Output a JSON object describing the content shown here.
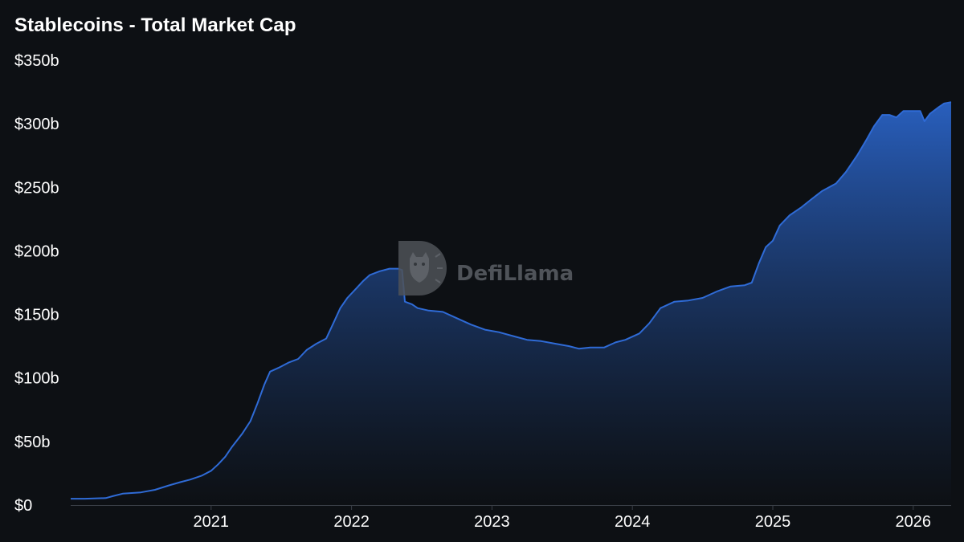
{
  "colors": {
    "background": "#0d1014",
    "line": "#2f6bd6",
    "fill_top": "#2a63c6",
    "fill_bottom": "#0d1014",
    "axis": "#3a3f47",
    "text": "#ffffff",
    "watermark": "#5b5f66"
  },
  "watermark": {
    "text": "DefiLlama",
    "icon": "llama-logo-icon"
  },
  "chart_data": {
    "type": "area",
    "title": "Stablecoins - Total Market Cap",
    "xlabel": "",
    "ylabel": "",
    "y_tick_labels": [
      "$0",
      "$50b",
      "$100b",
      "$150b",
      "$200b",
      "$250b",
      "$300b",
      "$350b"
    ],
    "y_ticks": [
      0,
      50,
      100,
      150,
      200,
      250,
      300,
      350
    ],
    "ylim": [
      0,
      350
    ],
    "x_tick_labels": [
      "2021",
      "2022",
      "2023",
      "2024",
      "2025",
      "2026"
    ],
    "x_ticks": [
      2021,
      2022,
      2023,
      2024,
      2025,
      2026
    ],
    "xlim": [
      2020.0,
      2026.27
    ],
    "grid": false,
    "legend": "none",
    "series": [
      {
        "unit": "billion USD",
        "points": [
          [
            2020.0,
            5
          ],
          [
            2020.1,
            5
          ],
          [
            2020.25,
            5.5
          ],
          [
            2020.3,
            7
          ],
          [
            2020.37,
            9
          ],
          [
            2020.5,
            10
          ],
          [
            2020.6,
            12
          ],
          [
            2020.7,
            15.5
          ],
          [
            2020.78,
            18
          ],
          [
            2020.85,
            20
          ],
          [
            2020.93,
            23
          ],
          [
            2021.0,
            27
          ],
          [
            2021.05,
            32
          ],
          [
            2021.1,
            38
          ],
          [
            2021.15,
            46
          ],
          [
            2021.22,
            56
          ],
          [
            2021.28,
            66
          ],
          [
            2021.33,
            80
          ],
          [
            2021.38,
            95
          ],
          [
            2021.42,
            105
          ],
          [
            2021.48,
            108
          ],
          [
            2021.55,
            112
          ],
          [
            2021.62,
            115
          ],
          [
            2021.68,
            122
          ],
          [
            2021.75,
            127
          ],
          [
            2021.82,
            131
          ],
          [
            2021.87,
            143
          ],
          [
            2021.92,
            155
          ],
          [
            2021.97,
            163
          ],
          [
            2022.03,
            170
          ],
          [
            2022.08,
            176
          ],
          [
            2022.13,
            181
          ],
          [
            2022.2,
            184
          ],
          [
            2022.27,
            186
          ],
          [
            2022.33,
            186
          ],
          [
            2022.36,
            185
          ],
          [
            2022.38,
            160
          ],
          [
            2022.43,
            158
          ],
          [
            2022.47,
            155
          ],
          [
            2022.55,
            153
          ],
          [
            2022.65,
            152
          ],
          [
            2022.75,
            147
          ],
          [
            2022.85,
            142
          ],
          [
            2022.95,
            138
          ],
          [
            2023.05,
            136
          ],
          [
            2023.15,
            133
          ],
          [
            2023.25,
            130
          ],
          [
            2023.35,
            129
          ],
          [
            2023.45,
            127
          ],
          [
            2023.55,
            125
          ],
          [
            2023.62,
            123
          ],
          [
            2023.7,
            124
          ],
          [
            2023.8,
            124
          ],
          [
            2023.88,
            128
          ],
          [
            2023.95,
            130
          ],
          [
            2024.05,
            135
          ],
          [
            2024.12,
            143
          ],
          [
            2024.2,
            155
          ],
          [
            2024.3,
            160
          ],
          [
            2024.4,
            161
          ],
          [
            2024.5,
            163
          ],
          [
            2024.6,
            168
          ],
          [
            2024.7,
            172
          ],
          [
            2024.8,
            173
          ],
          [
            2024.85,
            175
          ],
          [
            2024.9,
            190
          ],
          [
            2024.95,
            203
          ],
          [
            2025.0,
            208
          ],
          [
            2025.05,
            220
          ],
          [
            2025.12,
            228
          ],
          [
            2025.2,
            234
          ],
          [
            2025.28,
            241
          ],
          [
            2025.35,
            247
          ],
          [
            2025.45,
            253
          ],
          [
            2025.52,
            262
          ],
          [
            2025.6,
            275
          ],
          [
            2025.67,
            288
          ],
          [
            2025.72,
            298
          ],
          [
            2025.78,
            307
          ],
          [
            2025.83,
            307
          ],
          [
            2025.88,
            305
          ],
          [
            2025.93,
            310
          ],
          [
            2026.0,
            310
          ],
          [
            2026.05,
            310
          ],
          [
            2026.08,
            302
          ],
          [
            2026.12,
            308
          ],
          [
            2026.18,
            313
          ],
          [
            2026.22,
            316
          ],
          [
            2026.27,
            317
          ]
        ]
      }
    ]
  }
}
